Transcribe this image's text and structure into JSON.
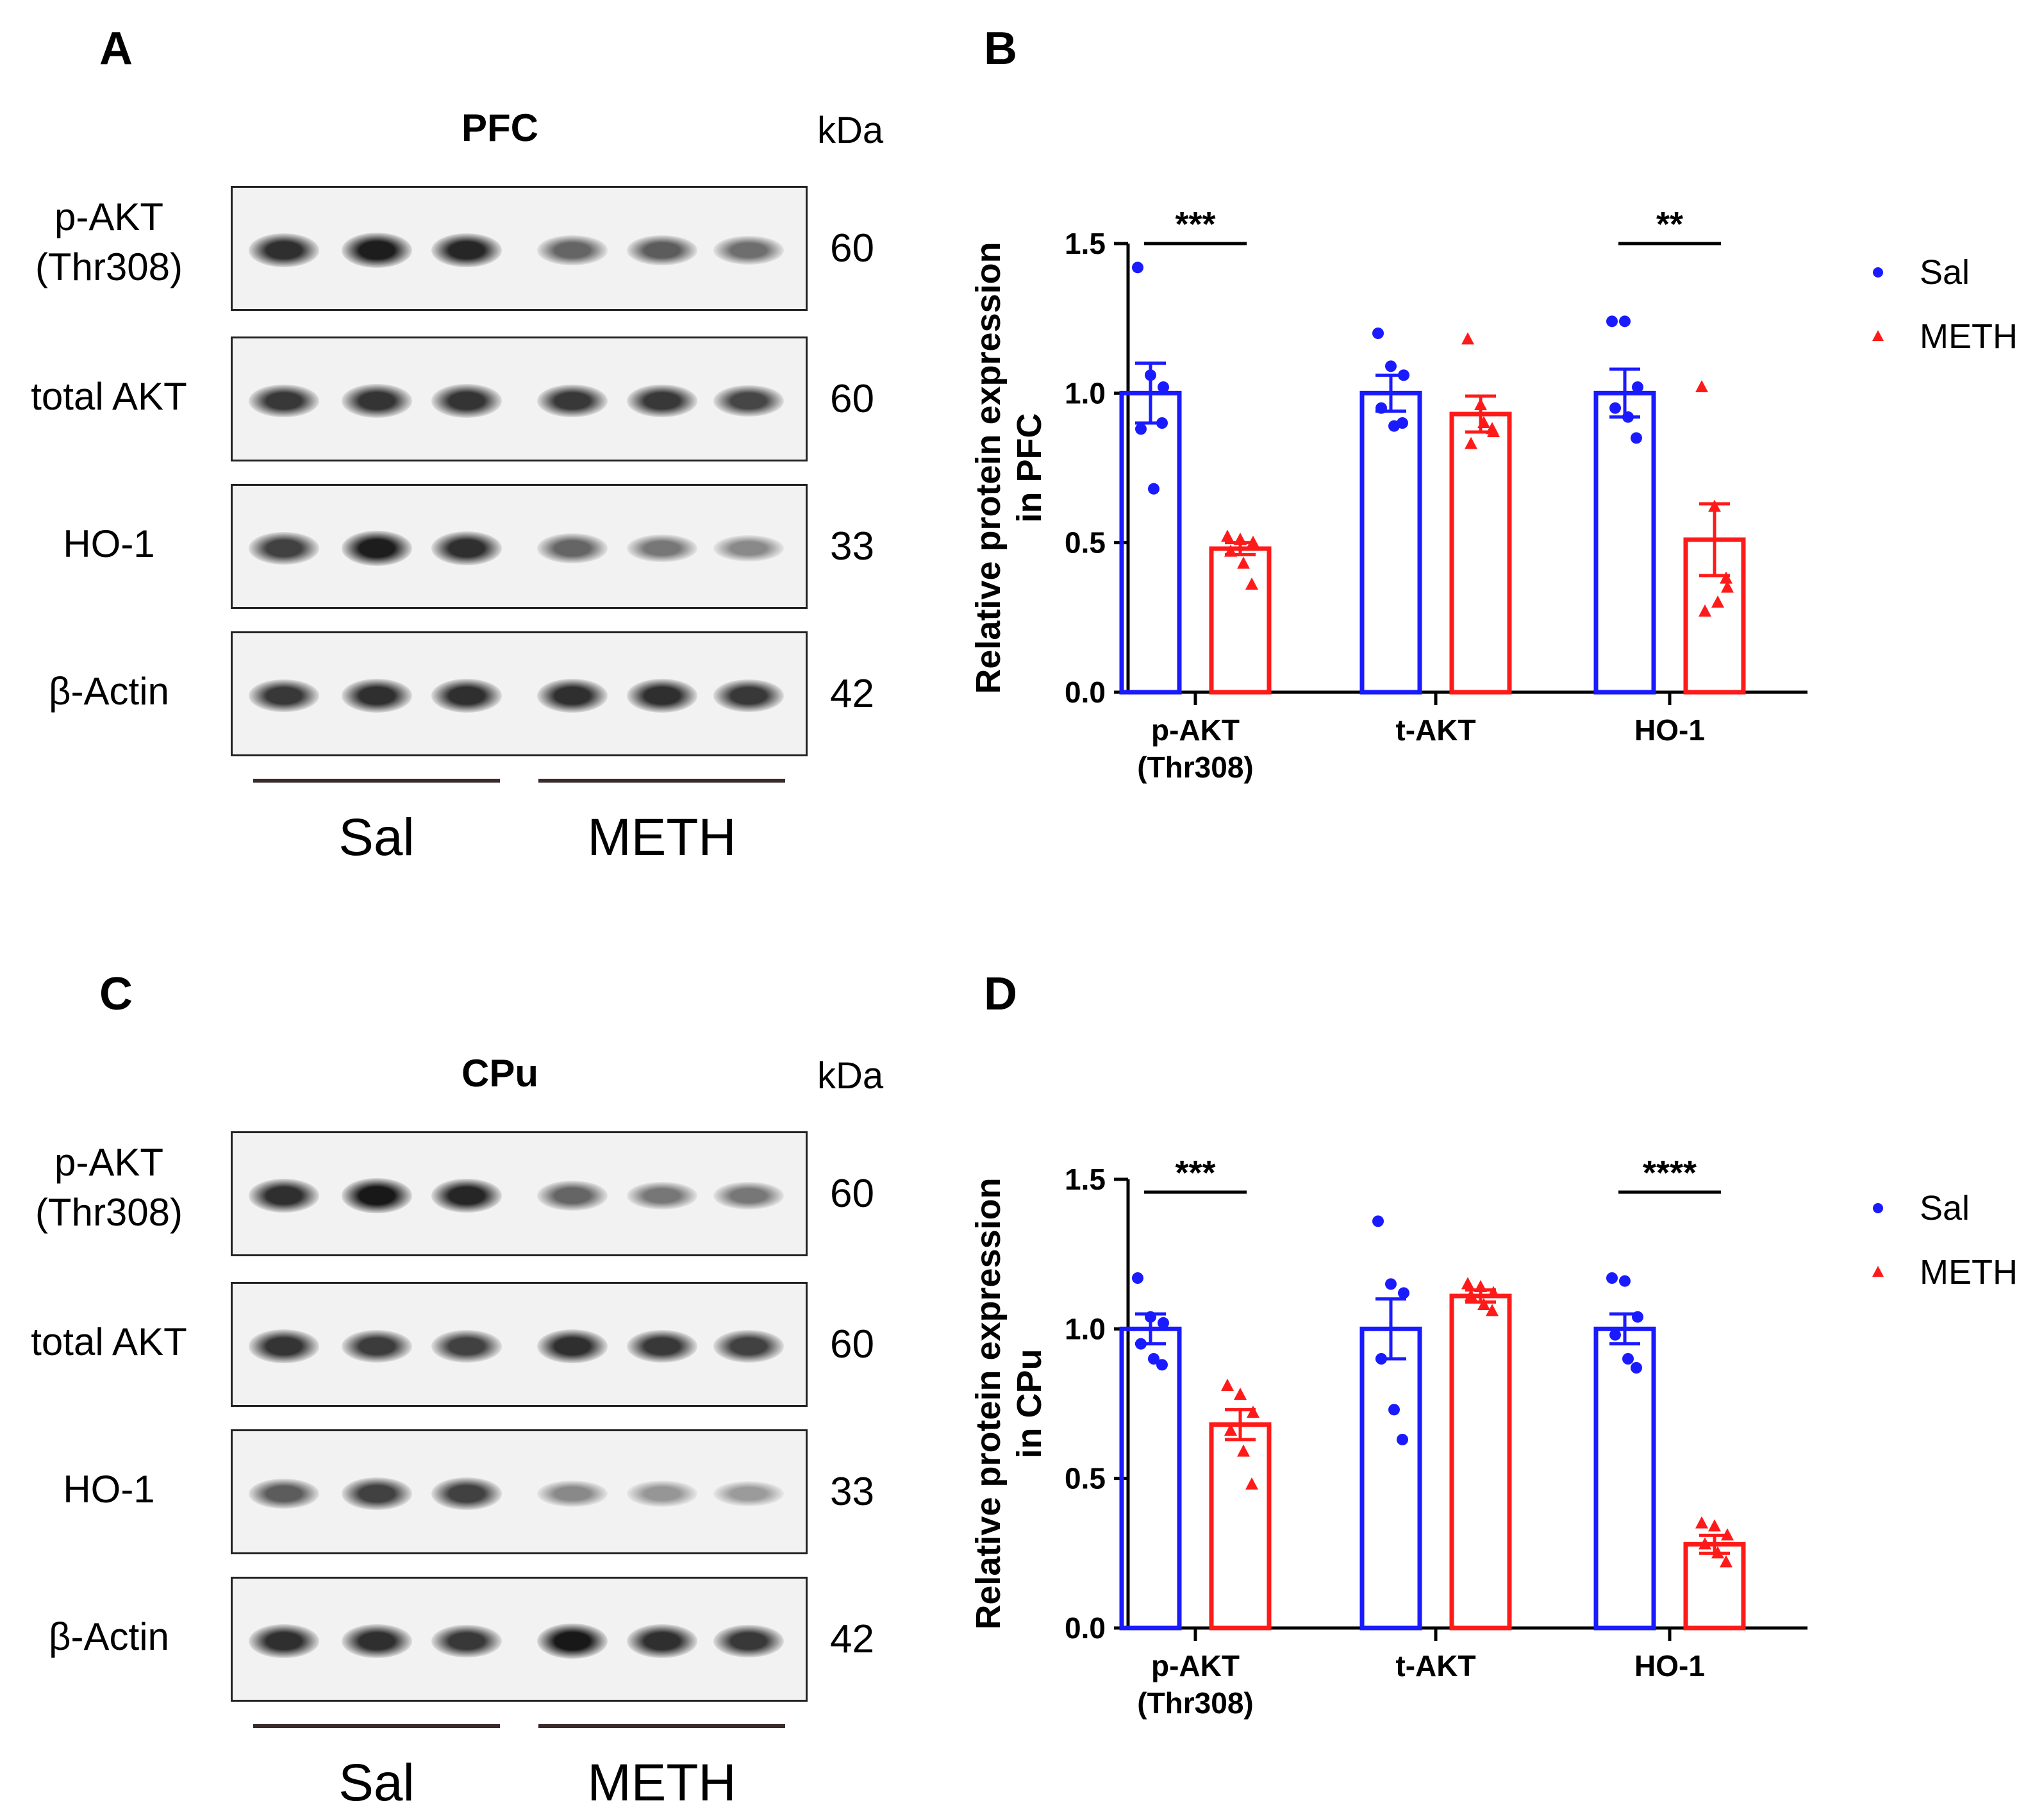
{
  "panels": {
    "a": {
      "letter": "A",
      "title": "PFC",
      "kda_label": "kDa",
      "rows": [
        {
          "label": "p-AKT\n(Thr308)",
          "mw": "60",
          "intensities": [
            0.85,
            0.95,
            0.9,
            0.55,
            0.6,
            0.5
          ]
        },
        {
          "label": "total AKT",
          "mw": "60",
          "intensities": [
            0.8,
            0.82,
            0.82,
            0.8,
            0.8,
            0.72
          ]
        },
        {
          "label": "HO-1",
          "mw": "33",
          "intensities": [
            0.75,
            0.95,
            0.85,
            0.55,
            0.45,
            0.35
          ]
        },
        {
          "label": "β-Actin",
          "mw": "42",
          "intensities": [
            0.8,
            0.85,
            0.85,
            0.85,
            0.85,
            0.8
          ]
        }
      ],
      "groups": [
        "Sal",
        "METH"
      ]
    },
    "c": {
      "letter": "C",
      "title": "CPu",
      "kda_label": "kDa",
      "rows": [
        {
          "label": "p-AKT\n(Thr308)",
          "mw": "60",
          "intensities": [
            0.85,
            0.98,
            0.9,
            0.55,
            0.45,
            0.45
          ]
        },
        {
          "label": "total AKT",
          "mw": "60",
          "intensities": [
            0.82,
            0.78,
            0.75,
            0.85,
            0.8,
            0.75
          ]
        },
        {
          "label": "HO-1",
          "mw": "33",
          "intensities": [
            0.6,
            0.75,
            0.75,
            0.35,
            0.28,
            0.25
          ]
        },
        {
          "label": "β-Actin",
          "mw": "42",
          "intensities": [
            0.85,
            0.85,
            0.8,
            0.98,
            0.85,
            0.8
          ]
        }
      ],
      "groups": [
        "Sal",
        "METH"
      ]
    },
    "b": {
      "letter": "B"
    },
    "d": {
      "letter": "D"
    }
  },
  "colors": {
    "sal": "#1a1aff",
    "meth": "#ff1a1a"
  },
  "chart_data": [
    {
      "type": "bar",
      "panel": "B",
      "categories": [
        "p-AKT\n(Thr308)",
        "t-AKT",
        "HO-1"
      ],
      "ylabel": "Relative protein expression\nin PFC",
      "ylim": [
        0,
        1.5
      ],
      "yticks": [
        "0.0",
        "0.5",
        "1.0",
        "1.5"
      ],
      "legend_position": "top-right",
      "series": [
        {
          "name": "Sal",
          "values": [
            1.0,
            1.0,
            1.0
          ],
          "sem": [
            0.1,
            0.06,
            0.08
          ],
          "points": [
            [
              1.42,
              1.06,
              1.02,
              0.88,
              0.68,
              0.9
            ],
            [
              1.2,
              1.09,
              1.06,
              0.95,
              0.89,
              0.9
            ],
            [
              1.24,
              1.24,
              1.02,
              0.95,
              0.92,
              0.85
            ]
          ]
        },
        {
          "name": "METH",
          "values": [
            0.48,
            0.93,
            0.51
          ],
          "sem": [
            0.02,
            0.06,
            0.12
          ],
          "points": [
            [
              0.52,
              0.51,
              0.5,
              0.47,
              0.43,
              0.36
            ],
            [
              1.18,
              0.96,
              0.87,
              0.83,
              0.9,
              0.88
            ],
            [
              1.02,
              0.62,
              0.35,
              0.27,
              0.3,
              0.38
            ]
          ]
        }
      ],
      "significance": [
        "***",
        "",
        "**"
      ]
    },
    {
      "type": "bar",
      "panel": "D",
      "categories": [
        "p-AKT\n(Thr308)",
        "t-AKT",
        "HO-1"
      ],
      "ylabel": "Relative protein expression\nin CPu",
      "ylim": [
        0,
        1.5
      ],
      "yticks": [
        "0.0",
        "0.5",
        "1.0",
        "1.5"
      ],
      "legend_position": "top-right",
      "series": [
        {
          "name": "Sal",
          "values": [
            1.0,
            1.0,
            1.0
          ],
          "sem": [
            0.05,
            0.1,
            0.05
          ],
          "points": [
            [
              1.17,
              1.04,
              1.02,
              0.95,
              0.9,
              0.88
            ],
            [
              1.36,
              1.15,
              1.12,
              0.9,
              0.73,
              0.63
            ],
            [
              1.17,
              1.16,
              1.04,
              0.98,
              0.9,
              0.87
            ]
          ]
        },
        {
          "name": "METH",
          "values": [
            0.68,
            1.11,
            0.28
          ],
          "sem": [
            0.05,
            0.02,
            0.03
          ],
          "points": [
            [
              0.81,
              0.78,
              0.72,
              0.66,
              0.59,
              0.48
            ],
            [
              1.15,
              1.14,
              1.12,
              1.11,
              1.08,
              1.06
            ],
            [
              0.35,
              0.34,
              0.31,
              0.28,
              0.25,
              0.22
            ]
          ]
        }
      ],
      "significance": [
        "***",
        "",
        "****"
      ]
    }
  ]
}
